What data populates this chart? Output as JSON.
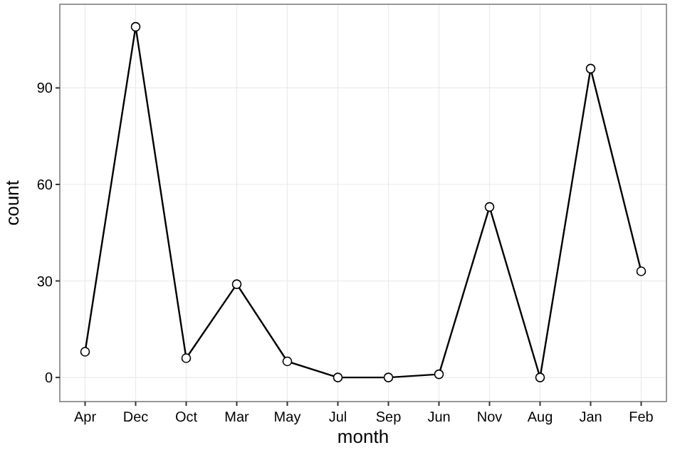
{
  "chart_data": {
    "type": "line",
    "xlabel": "month",
    "ylabel": "count",
    "categories": [
      "Apr",
      "Dec",
      "Oct",
      "Mar",
      "May",
      "Jul",
      "Sep",
      "Jun",
      "Nov",
      "Aug",
      "Jan",
      "Feb"
    ],
    "series": [
      {
        "color": "#000000",
        "values": [
          8,
          109,
          6,
          29,
          5,
          0,
          0,
          1,
          53,
          0,
          96,
          33
        ]
      }
    ],
    "ylim": [
      -7.5,
      116
    ],
    "yticks": [
      0,
      30,
      60,
      90
    ],
    "grid": true,
    "marker": "circle",
    "line_style": "solid"
  }
}
